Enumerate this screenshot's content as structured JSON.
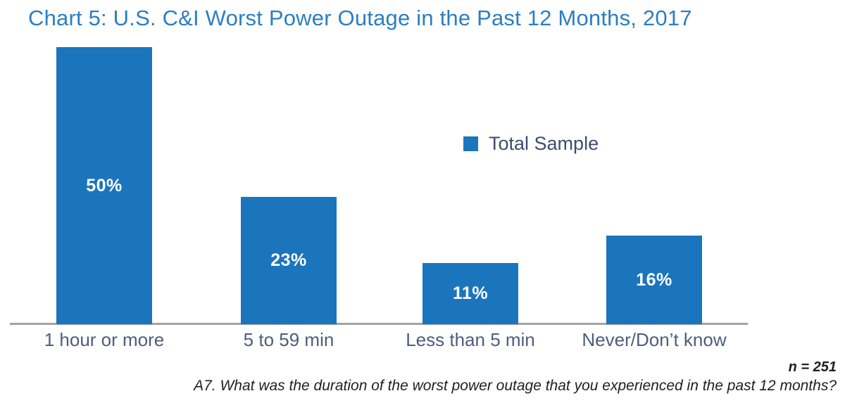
{
  "colors": {
    "bar": "#1b75bc",
    "title": "#2b7ec3",
    "category_label": "#4e5d7e",
    "legend_label": "#3e4c6e",
    "axis_line": "#a3a3a3",
    "value_label": "#ffffff",
    "footnote": "#1f1f1f"
  },
  "footnotes": {
    "sample_size": "n = 251",
    "question": "A7. What was the duration of the worst power outage that you experienced in the past 12 months?"
  },
  "chart_data": {
    "type": "bar",
    "title": "Chart 5: U.S. C&I Worst Power Outage in the Past 12 Months, 2017",
    "categories": [
      "1 hour or more",
      "5 to 59 min",
      "Less than 5 min",
      "Never/Don’t know"
    ],
    "series": [
      {
        "name": "Total Sample",
        "values": [
          50,
          23,
          11,
          16
        ]
      }
    ],
    "value_labels": [
      "50%",
      "23%",
      "11%",
      "16%"
    ],
    "xlabel": "",
    "ylabel": "",
    "ylim": [
      0,
      50
    ],
    "grid": false,
    "y_axis_shown": false,
    "legend_position": "center-right",
    "value_label_position": "inside-center"
  }
}
